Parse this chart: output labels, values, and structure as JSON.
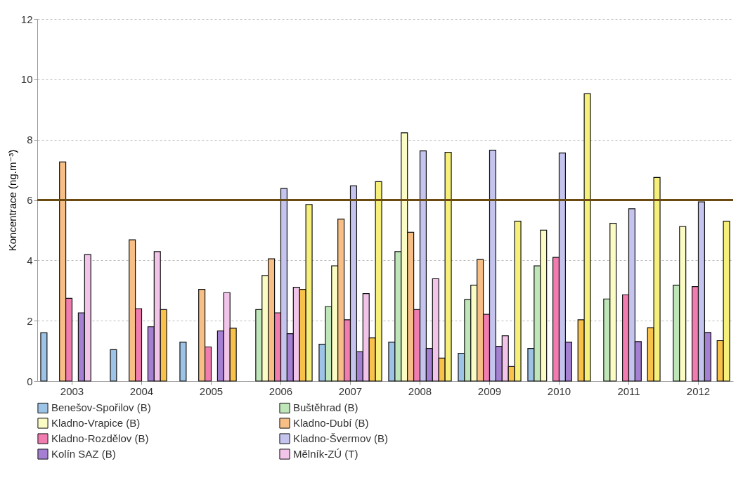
{
  "chart_data": {
    "type": "bar",
    "ylabel": "Koncentrace (ng.m⁻³)",
    "categories": [
      "2003",
      "2004",
      "2005",
      "2006",
      "2007",
      "2008",
      "2009",
      "2010",
      "2011",
      "2012"
    ],
    "series": [
      {
        "name": "Benešov-Spořilov (B)",
        "color": "#9dc3e6",
        "values": [
          1.6,
          1.04,
          1.29,
          null,
          1.22,
          1.29,
          0.92,
          1.08,
          null,
          null
        ]
      },
      {
        "name": "Buštěhrad (B)",
        "color": "#bfe6b8",
        "values": [
          null,
          null,
          null,
          2.37,
          2.47,
          4.29,
          2.7,
          3.82,
          2.72,
          3.18
        ]
      },
      {
        "name": "Kladno-Vrapice (B)",
        "color": "#fbfbc4",
        "values": [
          null,
          null,
          null,
          3.5,
          3.82,
          8.23,
          3.18,
          5.0,
          5.23,
          5.12
        ]
      },
      {
        "name": "Kladno-Dubí (B)",
        "color": "#f7bf86",
        "values": [
          7.26,
          4.68,
          3.04,
          4.05,
          5.37,
          4.93,
          4.03,
          null,
          null,
          null
        ]
      },
      {
        "name": "Kladno-Rozdělov (B)",
        "color": "#f07cb0",
        "values": [
          2.74,
          2.4,
          1.13,
          2.26,
          2.03,
          2.37,
          2.21,
          4.1,
          2.86,
          3.13
        ]
      },
      {
        "name": "Kladno-Švermov (B)",
        "color": "#c4c4ee",
        "values": [
          null,
          null,
          null,
          6.38,
          6.47,
          7.63,
          7.65,
          7.56,
          5.71,
          5.94
        ]
      },
      {
        "name": "Kolín SAZ (B)",
        "color": "#a47fd2",
        "values": [
          2.26,
          1.8,
          1.66,
          1.57,
          0.97,
          1.08,
          1.15,
          1.29,
          1.31,
          1.61
        ]
      },
      {
        "name": "Mělník-ZÚ (T)",
        "color": "#f2c4ea",
        "values": [
          4.19,
          4.29,
          2.93,
          3.11,
          2.9,
          3.39,
          1.5,
          null,
          null,
          null
        ]
      },
      {
        "color": "#f8c14a",
        "values": [
          null,
          2.37,
          1.75,
          3.04,
          1.43,
          0.76,
          0.48,
          2.03,
          1.77,
          1.34
        ]
      },
      {
        "color": "#f6f07a",
        "values": [
          null,
          null,
          null,
          5.85,
          6.61,
          7.58,
          5.3,
          9.52,
          6.75,
          5.3
        ]
      }
    ],
    "ylim": [
      0,
      12
    ],
    "yticks": [
      0,
      2,
      4,
      6,
      8,
      10,
      12
    ],
    "grid": "y",
    "legend": "bottom",
    "ref_lines": [
      {
        "axis": "y",
        "value": 6,
        "color": "#6b4a12"
      }
    ]
  }
}
